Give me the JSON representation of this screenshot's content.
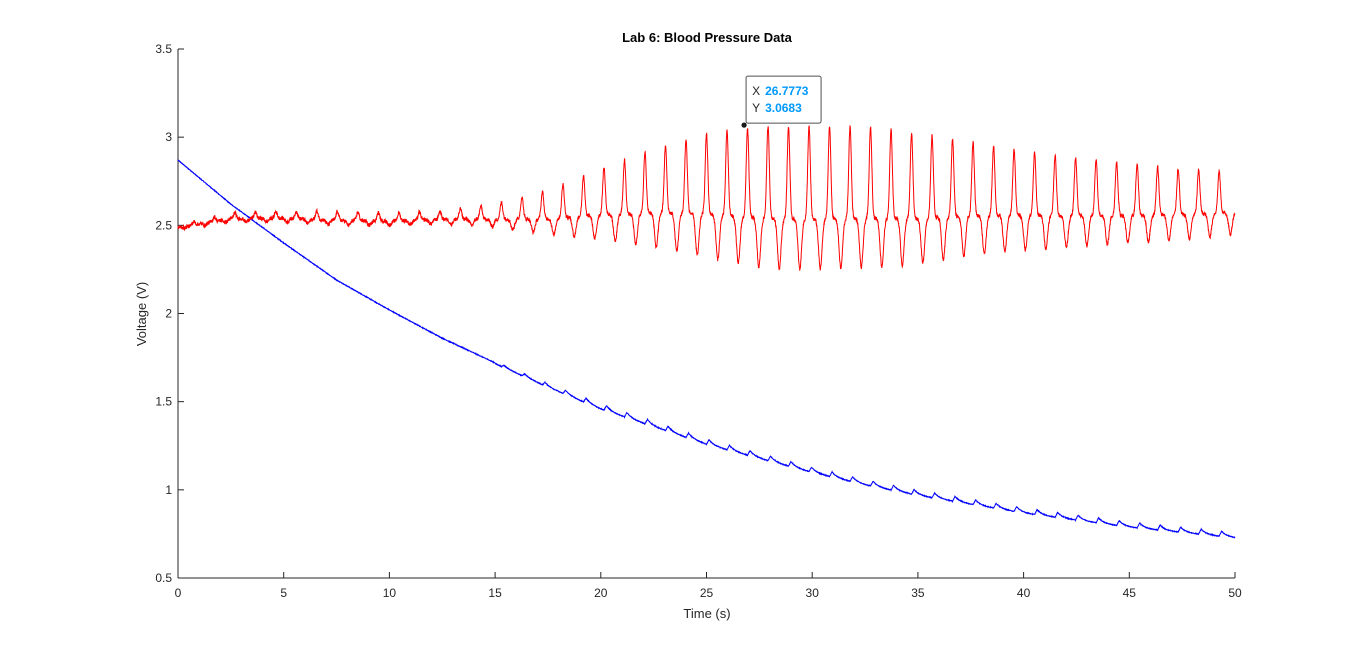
{
  "chart_data": {
    "type": "line",
    "title": "Lab 6: Blood Pressure Data",
    "xlabel": "Time (s)",
    "ylabel": "Voltage (V)",
    "xlim": [
      0,
      50
    ],
    "ylim": [
      0.5,
      3.5
    ],
    "xticks": [
      0,
      5,
      10,
      15,
      20,
      25,
      30,
      35,
      40,
      45,
      50
    ],
    "yticks": [
      0.5,
      1,
      1.5,
      2,
      2.5,
      3,
      3.5
    ],
    "xtick_labels": [
      "0",
      "5",
      "10",
      "15",
      "20",
      "25",
      "30",
      "35",
      "40",
      "45",
      "50"
    ],
    "ytick_labels": [
      "0.5",
      "1",
      "1.5",
      "2",
      "2.5",
      "3",
      "3.5"
    ],
    "grid": false,
    "legend": "none",
    "series": [
      {
        "color": "#0000ff",
        "description": "cuff pressure decay (blue)",
        "x": [
          0,
          2.5,
          5,
          7.5,
          10,
          12.5,
          15,
          17.5,
          20,
          22.5,
          25,
          27.5,
          30,
          32.5,
          35,
          37.5,
          40,
          42.5,
          45,
          47.5,
          50
        ],
        "values": [
          2.87,
          2.62,
          2.4,
          2.19,
          2.02,
          1.86,
          1.72,
          1.59,
          1.47,
          1.37,
          1.27,
          1.19,
          1.11,
          1.04,
          0.98,
          0.93,
          0.88,
          0.84,
          0.8,
          0.77,
          0.74
        ],
        "ripple_start": 15,
        "ripple_amplitude": 0.03,
        "beat_period": 0.97
      },
      {
        "color": "#ff0000",
        "description": "oscillation signal (red)",
        "x": [
          0,
          2.5,
          5,
          7.5,
          10,
          12.5,
          15,
          17.5,
          20,
          22.5,
          25,
          27.5,
          30,
          32.5,
          35,
          37.5,
          40,
          42.5,
          45,
          47.5,
          50
        ],
        "upper": [
          2.5,
          2.57,
          2.58,
          2.58,
          2.57,
          2.58,
          2.62,
          2.7,
          2.82,
          2.93,
          3.02,
          3.06,
          3.06,
          3.06,
          3.02,
          2.97,
          2.92,
          2.88,
          2.85,
          2.82,
          2.8
        ],
        "lower": [
          2.48,
          2.52,
          2.52,
          2.5,
          2.5,
          2.51,
          2.49,
          2.45,
          2.42,
          2.38,
          2.32,
          2.26,
          2.25,
          2.26,
          2.28,
          2.33,
          2.36,
          2.38,
          2.4,
          2.42,
          2.45
        ],
        "beat_period": 0.97,
        "first_peak": 0.75
      }
    ]
  },
  "datatip": {
    "x_label": "X",
    "y_label": "Y",
    "x_value": "26.7773",
    "y_value": "3.0683",
    "x": 26.7773,
    "y": 3.0683,
    "value_color": "#0099ff"
  }
}
